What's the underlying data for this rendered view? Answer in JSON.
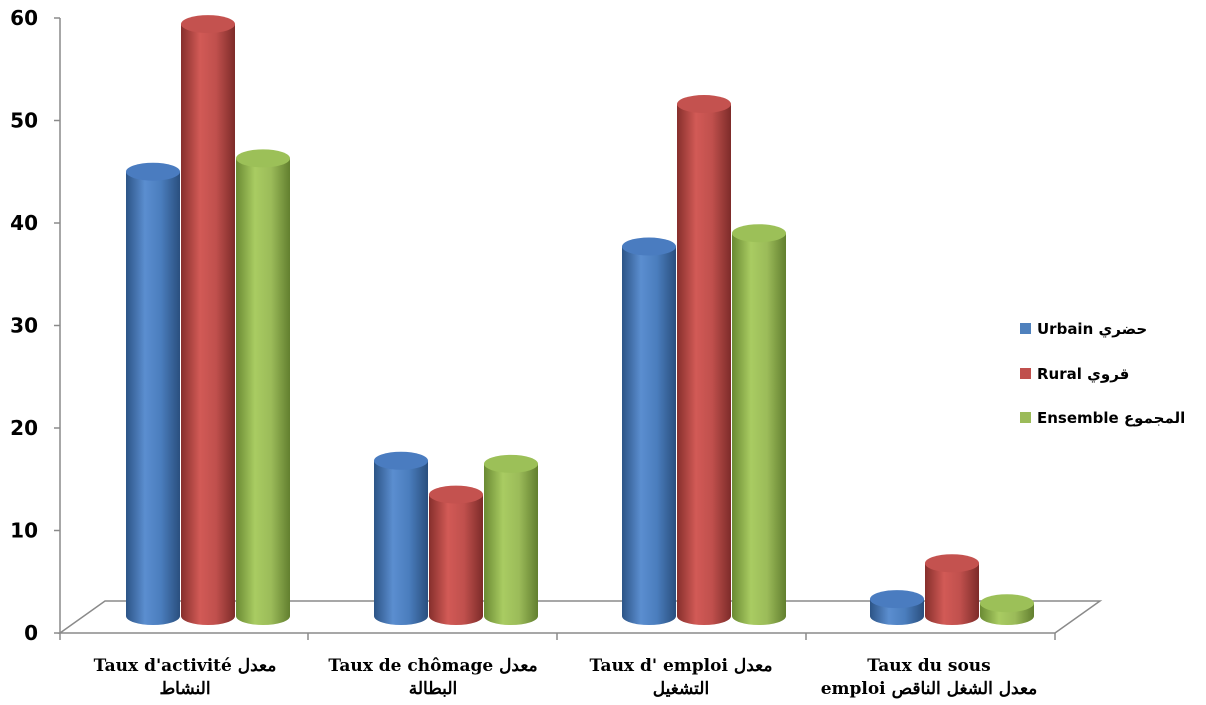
{
  "chart_data": {
    "type": "bar",
    "ylim": [
      0,
      60
    ],
    "yticks": [
      "0",
      "10",
      "20",
      "30",
      "40",
      "50",
      "60"
    ],
    "categories": [
      {
        "line1": "Taux d'activité  معدل",
        "line2": "النشاط"
      },
      {
        "line1": "Taux de chômage معدل",
        "line2": "البطالة"
      },
      {
        "line1": "Taux d' emploi معدل",
        "line2": "التشغيل"
      },
      {
        "line1": "Taux du sous",
        "line2": "emploi معدل الشغل الناقص"
      }
    ],
    "series": [
      {
        "name": "Urbain حضري",
        "color": "#4F81BD",
        "values": [
          45.2,
          17.0,
          37.9,
          3.5
        ]
      },
      {
        "name": "Rural قروي",
        "color": "#C0504D",
        "values": [
          59.6,
          13.7,
          51.8,
          7.0
        ]
      },
      {
        "name": "Ensemble المجموع",
        "color": "#9BBB59",
        "values": [
          46.5,
          16.7,
          39.2,
          3.1
        ]
      }
    ],
    "legend_position": "right",
    "grid": false
  }
}
